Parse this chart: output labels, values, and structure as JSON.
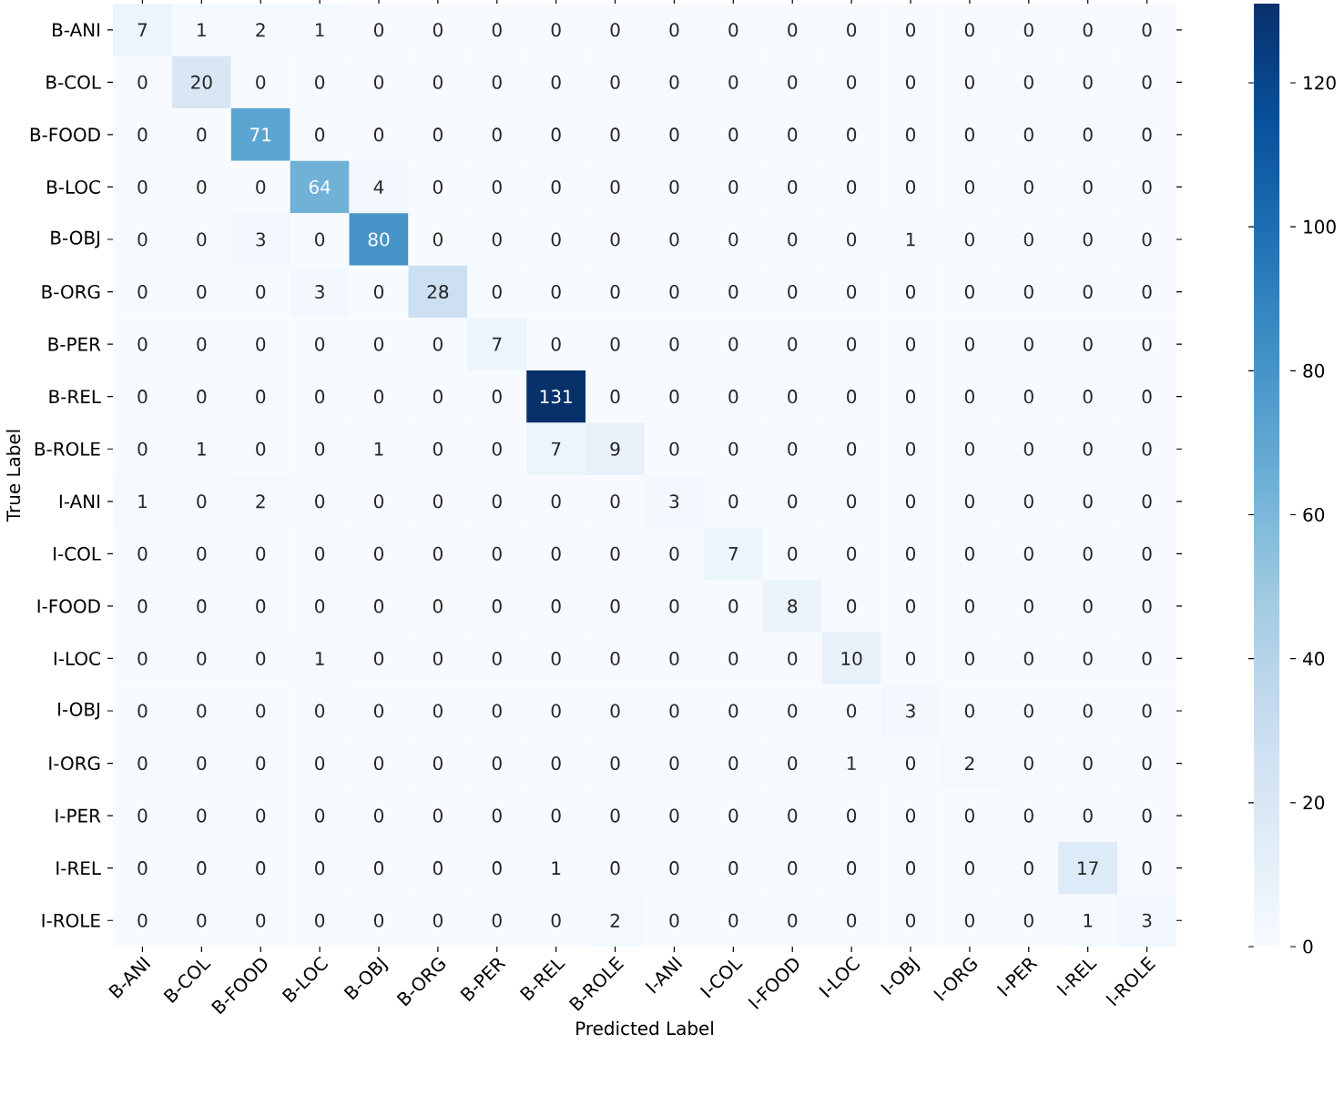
{
  "chart_data": {
    "type": "heatmap",
    "xlabel": "Predicted Label",
    "ylabel": "True Label",
    "categories": [
      "B-ANI",
      "B-COL",
      "B-FOOD",
      "B-LOC",
      "B-OBJ",
      "B-ORG",
      "B-PER",
      "B-REL",
      "B-ROLE",
      "I-ANI",
      "I-COL",
      "I-FOOD",
      "I-LOC",
      "I-OBJ",
      "I-ORG",
      "I-PER",
      "I-REL",
      "I-ROLE"
    ],
    "y_categories": [
      "B-ANI",
      "B-COL",
      "B-FOOD",
      "B-LOC",
      "B-OBJ",
      "B-ORG",
      "B-PER",
      "B-REL",
      "B-ROLE",
      "I-ANI",
      "I-COL",
      "I-FOOD",
      "I-LOC",
      "I-OBJ",
      "I-ORG",
      "I-PER",
      "I-REL",
      "I-ROLE"
    ],
    "cells": [
      [
        7,
        1,
        2,
        1,
        0,
        0,
        0,
        0,
        0,
        0,
        0,
        0,
        0,
        0,
        0,
        0,
        0,
        0
      ],
      [
        0,
        20,
        0,
        0,
        0,
        0,
        0,
        0,
        0,
        0,
        0,
        0,
        0,
        0,
        0,
        0,
        0,
        0
      ],
      [
        0,
        0,
        71,
        0,
        0,
        0,
        0,
        0,
        0,
        0,
        0,
        0,
        0,
        0,
        0,
        0,
        0,
        0
      ],
      [
        0,
        0,
        0,
        64,
        4,
        0,
        0,
        0,
        0,
        0,
        0,
        0,
        0,
        0,
        0,
        0,
        0,
        0
      ],
      [
        0,
        0,
        3,
        0,
        80,
        0,
        0,
        0,
        0,
        0,
        0,
        0,
        0,
        1,
        0,
        0,
        0,
        0
      ],
      [
        0,
        0,
        0,
        3,
        0,
        28,
        0,
        0,
        0,
        0,
        0,
        0,
        0,
        0,
        0,
        0,
        0,
        0
      ],
      [
        0,
        0,
        0,
        0,
        0,
        0,
        7,
        0,
        0,
        0,
        0,
        0,
        0,
        0,
        0,
        0,
        0,
        0
      ],
      [
        0,
        0,
        0,
        0,
        0,
        0,
        0,
        131,
        0,
        0,
        0,
        0,
        0,
        0,
        0,
        0,
        0,
        0
      ],
      [
        0,
        1,
        0,
        0,
        1,
        0,
        0,
        7,
        9,
        0,
        0,
        0,
        0,
        0,
        0,
        0,
        0,
        0
      ],
      [
        1,
        0,
        2,
        0,
        0,
        0,
        0,
        0,
        0,
        3,
        0,
        0,
        0,
        0,
        0,
        0,
        0,
        0
      ],
      [
        0,
        0,
        0,
        0,
        0,
        0,
        0,
        0,
        0,
        0,
        7,
        0,
        0,
        0,
        0,
        0,
        0,
        0
      ],
      [
        0,
        0,
        0,
        0,
        0,
        0,
        0,
        0,
        0,
        0,
        0,
        8,
        0,
        0,
        0,
        0,
        0,
        0
      ],
      [
        0,
        0,
        0,
        1,
        0,
        0,
        0,
        0,
        0,
        0,
        0,
        0,
        10,
        0,
        0,
        0,
        0,
        0
      ],
      [
        0,
        0,
        0,
        0,
        0,
        0,
        0,
        0,
        0,
        0,
        0,
        0,
        0,
        3,
        0,
        0,
        0,
        0
      ],
      [
        0,
        0,
        0,
        0,
        0,
        0,
        0,
        0,
        0,
        0,
        0,
        0,
        1,
        0,
        2,
        0,
        0,
        0
      ],
      [
        0,
        0,
        0,
        0,
        0,
        0,
        0,
        0,
        0,
        0,
        0,
        0,
        0,
        0,
        0,
        0,
        0,
        0
      ],
      [
        0,
        0,
        0,
        0,
        0,
        0,
        0,
        1,
        0,
        0,
        0,
        0,
        0,
        0,
        0,
        0,
        17,
        0
      ],
      [
        0,
        0,
        0,
        0,
        0,
        0,
        0,
        0,
        2,
        0,
        0,
        0,
        0,
        0,
        0,
        0,
        1,
        3
      ]
    ],
    "clim": [
      0,
      131
    ],
    "cticks": [
      0,
      20,
      40,
      60,
      80,
      100,
      120
    ],
    "data_labels": true
  }
}
